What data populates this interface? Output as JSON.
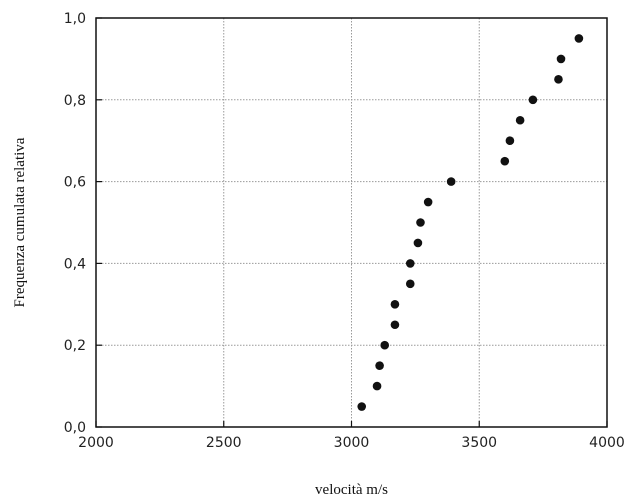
{
  "chart_data": {
    "type": "scatter",
    "title": "",
    "xlabel": "velocità m/s",
    "ylabel": "Frequenza cumulata relativa",
    "xlim": [
      2000,
      4000
    ],
    "ylim": [
      0.0,
      1.0
    ],
    "x_ticks": [
      2000,
      2500,
      3000,
      3500,
      4000
    ],
    "x_tick_labels": [
      "2000",
      "2500",
      "3000",
      "3500",
      "4000"
    ],
    "y_ticks": [
      0.0,
      0.2,
      0.4,
      0.6,
      0.8,
      1.0
    ],
    "y_tick_labels": [
      "0,0",
      "0,2",
      "0,4",
      "0,6",
      "0,8",
      "1,0"
    ],
    "grid": true,
    "marker_color": "#111111",
    "points": [
      {
        "x": 3040,
        "y": 0.05
      },
      {
        "x": 3100,
        "y": 0.1
      },
      {
        "x": 3110,
        "y": 0.15
      },
      {
        "x": 3130,
        "y": 0.2
      },
      {
        "x": 3170,
        "y": 0.25
      },
      {
        "x": 3170,
        "y": 0.3
      },
      {
        "x": 3230,
        "y": 0.35
      },
      {
        "x": 3230,
        "y": 0.4
      },
      {
        "x": 3260,
        "y": 0.45
      },
      {
        "x": 3270,
        "y": 0.5
      },
      {
        "x": 3300,
        "y": 0.55
      },
      {
        "x": 3390,
        "y": 0.6
      },
      {
        "x": 3600,
        "y": 0.65
      },
      {
        "x": 3620,
        "y": 0.7
      },
      {
        "x": 3660,
        "y": 0.75
      },
      {
        "x": 3710,
        "y": 0.8
      },
      {
        "x": 3810,
        "y": 0.85
      },
      {
        "x": 3820,
        "y": 0.9
      },
      {
        "x": 3890,
        "y": 0.95
      }
    ]
  }
}
